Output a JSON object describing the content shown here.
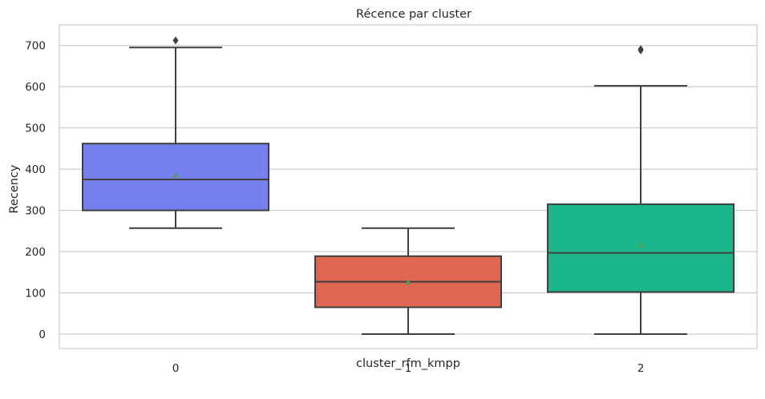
{
  "chart_data": {
    "type": "box",
    "title": "Récence par cluster",
    "xlabel": "cluster_rfm_kmpp",
    "ylabel": "Recency",
    "ylim": [
      -35,
      750
    ],
    "yticks": [
      0,
      100,
      200,
      300,
      400,
      500,
      600,
      700
    ],
    "grid": "horizontal",
    "categories": [
      "0",
      "1",
      "2"
    ],
    "boxes": [
      {
        "category": "0",
        "whisker_low": 257,
        "q1": 300,
        "median": 375,
        "q3": 462,
        "whisker_high": 695,
        "mean": 385,
        "outliers": [
          712
        ],
        "color": "#7580ee"
      },
      {
        "category": "1",
        "whisker_low": 0,
        "q1": 65,
        "median": 127,
        "q3": 189,
        "whisker_high": 257,
        "mean": 125,
        "outliers": [],
        "color": "#de6652"
      },
      {
        "category": "2",
        "whisker_low": 0,
        "q1": 102,
        "median": 197,
        "q3": 315,
        "whisker_high": 602,
        "mean": 216,
        "outliers": [
          688,
          691
        ],
        "color": "#1db68a"
      }
    ],
    "mean_marker_color": "#4f9e57"
  }
}
